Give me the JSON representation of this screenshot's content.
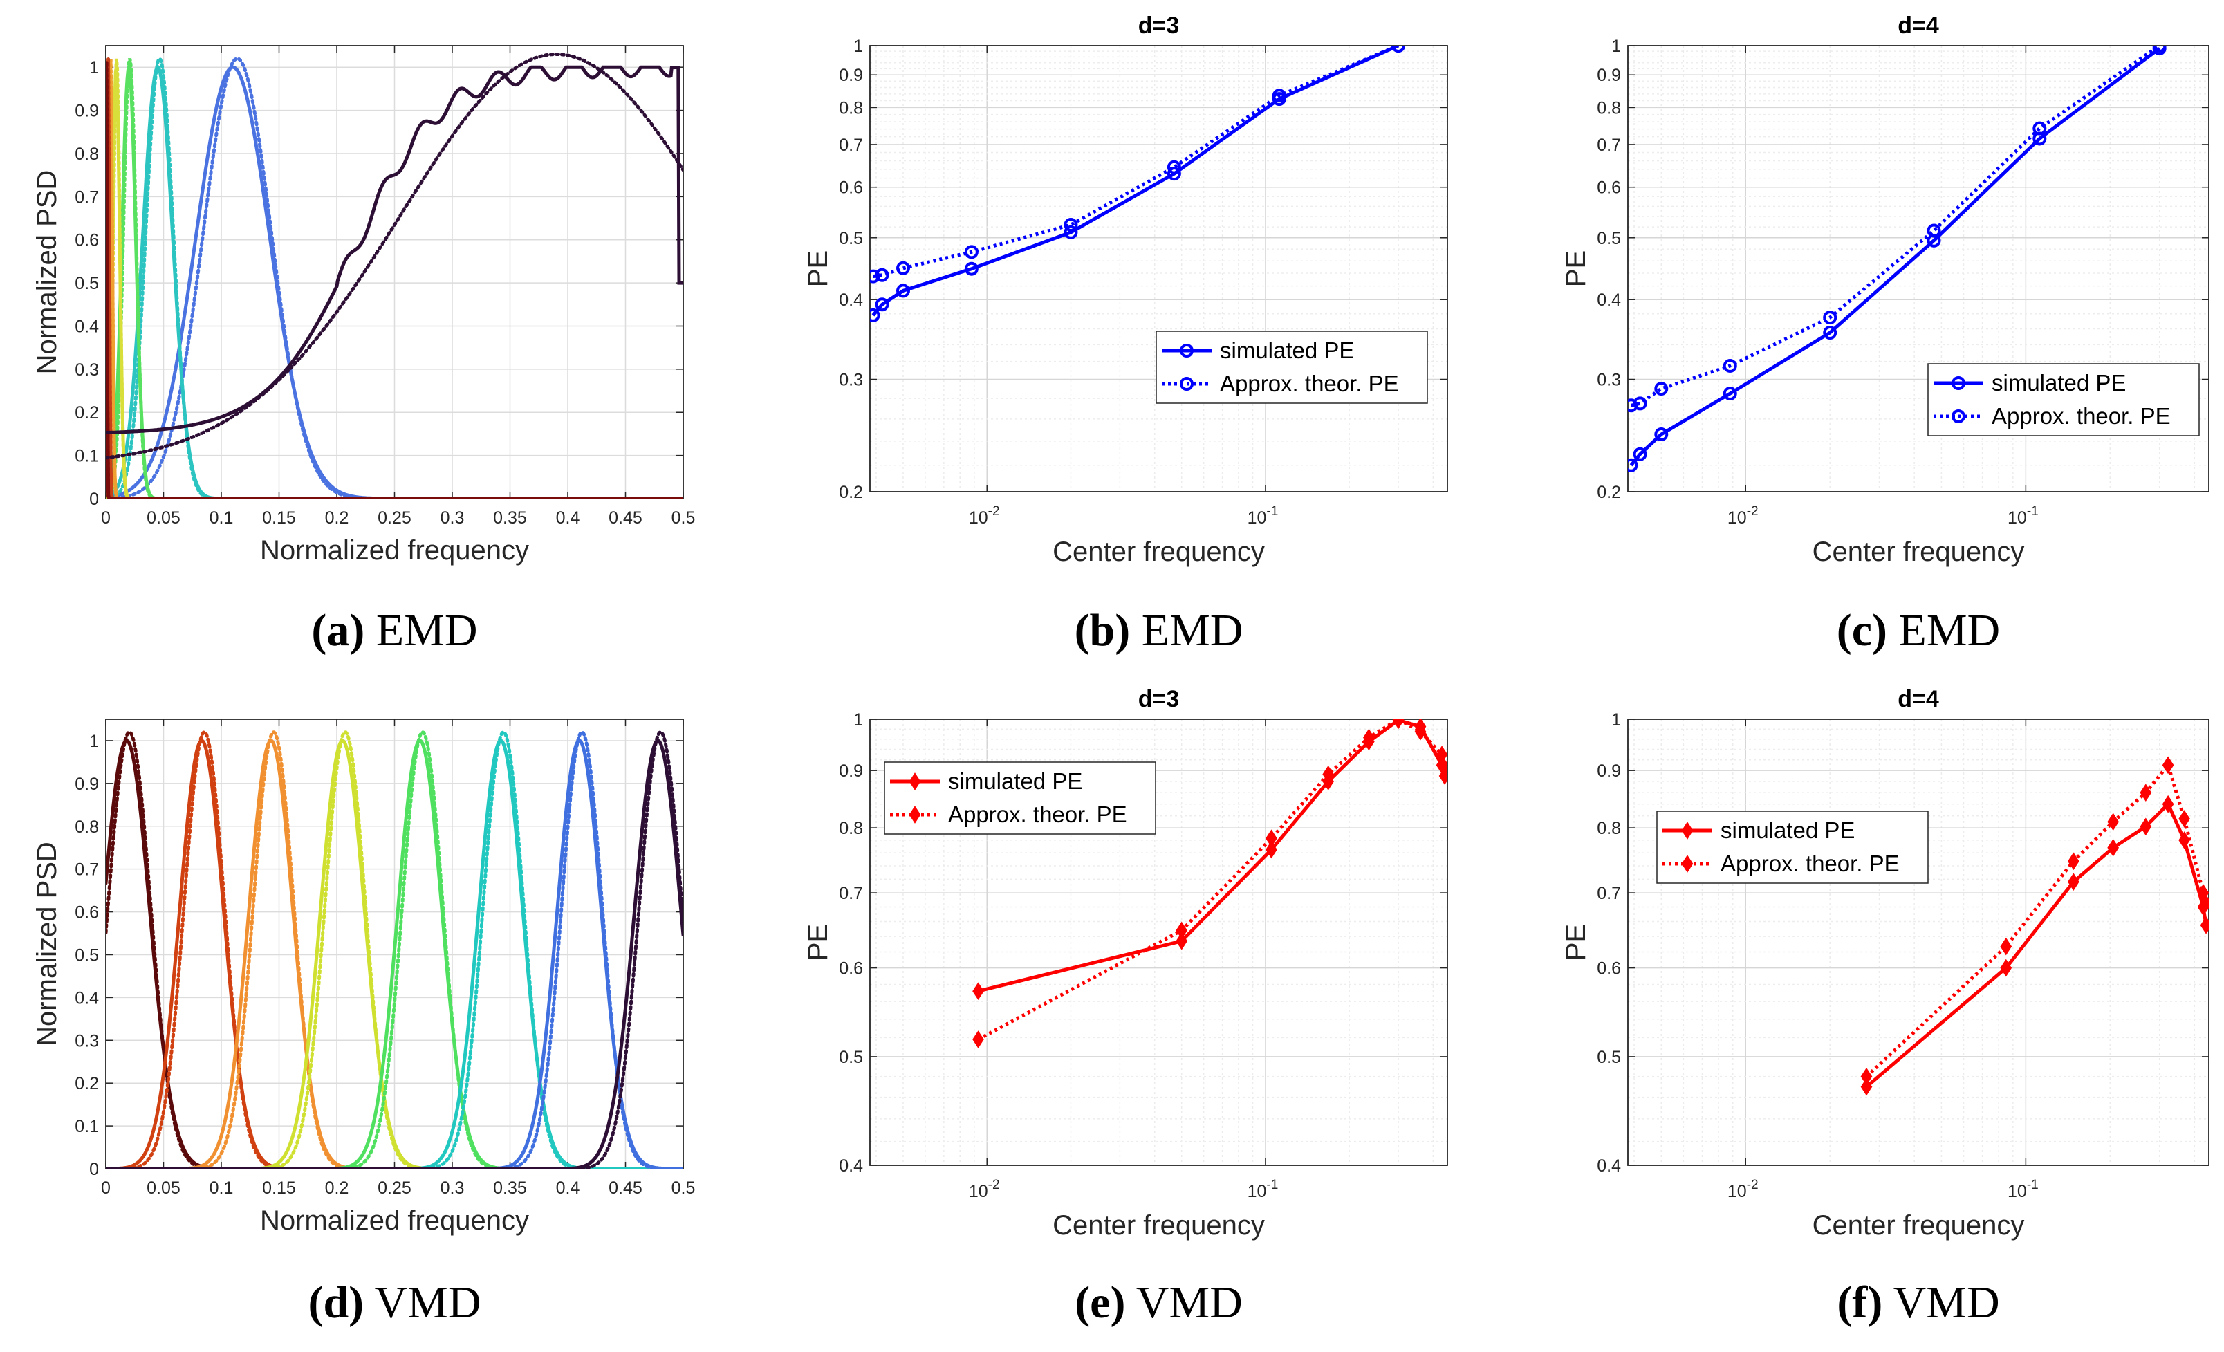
{
  "chart_data": [
    {
      "id": "a",
      "type": "line",
      "title": "",
      "caption_letter": "(a)",
      "caption_text": "EMD",
      "xlabel": "Normalized frequency",
      "ylabel": "Normalized PSD",
      "xlim": [
        0,
        0.5
      ],
      "ylim": [
        0,
        1.05
      ],
      "xticks": [
        0,
        0.05,
        0.1,
        0.15,
        0.2,
        0.25,
        0.3,
        0.35,
        0.4,
        0.45,
        0.5
      ],
      "xtick_labels": [
        "0",
        "0.05",
        "0.1",
        "0.15",
        "0.2",
        "0.25",
        "0.3",
        "0.35",
        "0.4",
        "0.45",
        "0.5"
      ],
      "yticks": [
        0,
        0.1,
        0.2,
        0.3,
        0.4,
        0.5,
        0.6,
        0.7,
        0.8,
        0.9,
        1
      ],
      "ytick_labels": [
        "0",
        "0.1",
        "0.2",
        "0.3",
        "0.4",
        "0.5",
        "0.6",
        "0.7",
        "0.8",
        "0.9",
        "1"
      ],
      "curves": [
        {
          "kind": "gauss",
          "center": 0.11,
          "width": 0.032,
          "peak": 1.0,
          "color": "#4a72e0"
        },
        {
          "kind": "gauss",
          "center": 0.045,
          "width": 0.013,
          "peak": 1.0,
          "color": "#2bc4c0"
        },
        {
          "kind": "gauss",
          "center": 0.02,
          "width": 0.006,
          "peak": 1.0,
          "color": "#58e060"
        },
        {
          "kind": "gauss",
          "center": 0.009,
          "width": 0.003,
          "peak": 1.0,
          "color": "#d8de3a"
        },
        {
          "kind": "gauss",
          "center": 0.004,
          "width": 0.0016,
          "peak": 1.0,
          "color": "#f0a030"
        },
        {
          "kind": "gauss",
          "center": 0.002,
          "width": 0.001,
          "peak": 1.0,
          "color": "#c8401a"
        },
        {
          "kind": "gauss",
          "center": 0.0006,
          "width": 0.0005,
          "peak": 1.0,
          "color": "#7a0c0c"
        },
        {
          "kind": "rising",
          "color": "#2d0f35"
        }
      ]
    },
    {
      "id": "b",
      "type": "line",
      "title": "d=3",
      "caption_letter": "(b)",
      "caption_text": "EMD",
      "xlabel": "Center  frequency",
      "ylabel": "PE",
      "xscale": "log",
      "yscale": "log",
      "xlim": [
        0.0038,
        0.45
      ],
      "ylim": [
        0.2,
        1
      ],
      "xticks": [
        0.01,
        0.1
      ],
      "xtick_labels": [
        "10",
        "10"
      ],
      "xtick_exponents": [
        "-2",
        "-1"
      ],
      "yticks": [
        0.2,
        0.3,
        0.4,
        0.5,
        0.6,
        0.7,
        0.8,
        0.9,
        1
      ],
      "ytick_labels": [
        "0.2",
        "0.3",
        "0.4",
        "0.5",
        "0.6",
        "0.7",
        "0.8",
        "0.9",
        "1"
      ],
      "color": "#0000ff",
      "marker": "circle",
      "legend": {
        "position": "middle-right",
        "entries": [
          "simulated PE",
          "Approx. theor. PE"
        ]
      },
      "series": [
        {
          "name": "simulated PE",
          "style": "solid",
          "x": [
            0.0039,
            0.0042,
            0.005,
            0.0088,
            0.02,
            0.047,
            0.112,
            0.3
          ],
          "values": [
            0.378,
            0.393,
            0.413,
            0.447,
            0.51,
            0.63,
            0.825,
            1.0
          ]
        },
        {
          "name": "Approx. theor. PE",
          "style": "dotted",
          "x": [
            0.0039,
            0.0042,
            0.005,
            0.0088,
            0.02,
            0.047,
            0.112,
            0.3
          ],
          "values": [
            0.435,
            0.437,
            0.448,
            0.475,
            0.524,
            0.645,
            0.835,
            1.0
          ]
        }
      ]
    },
    {
      "id": "c",
      "type": "line",
      "title": "d=4",
      "caption_letter": "(c)",
      "caption_text": "EMD",
      "xlabel": "Center  frequency",
      "ylabel": "PE",
      "xscale": "log",
      "yscale": "log",
      "xlim": [
        0.0038,
        0.45
      ],
      "ylim": [
        0.2,
        1
      ],
      "xticks": [
        0.01,
        0.1
      ],
      "xtick_labels": [
        "10",
        "10"
      ],
      "xtick_exponents": [
        "-2",
        "-1"
      ],
      "yticks": [
        0.2,
        0.3,
        0.4,
        0.5,
        0.6,
        0.7,
        0.8,
        0.9,
        1
      ],
      "ytick_labels": [
        "0.2",
        "0.3",
        "0.4",
        "0.5",
        "0.6",
        "0.7",
        "0.8",
        "0.9",
        "1"
      ],
      "color": "#0000ff",
      "marker": "circle",
      "legend": {
        "position": "lower-right",
        "entries": [
          "simulated PE",
          "Approx. theor. PE"
        ]
      },
      "series": [
        {
          "name": "simulated PE",
          "style": "solid",
          "x": [
            0.0039,
            0.0042,
            0.005,
            0.0088,
            0.02,
            0.047,
            0.112,
            0.3
          ],
          "values": [
            0.22,
            0.229,
            0.246,
            0.285,
            0.355,
            0.495,
            0.715,
            0.99
          ]
        },
        {
          "name": "Approx. theor. PE",
          "style": "dotted",
          "x": [
            0.0039,
            0.0042,
            0.005,
            0.0088,
            0.02,
            0.047,
            0.112,
            0.3
          ],
          "values": [
            0.273,
            0.275,
            0.29,
            0.315,
            0.375,
            0.513,
            0.742,
            1.0
          ]
        }
      ]
    },
    {
      "id": "d",
      "type": "line",
      "title": "",
      "caption_letter": "(d)",
      "caption_text": "VMD",
      "xlabel": "Normalized frequency",
      "ylabel": "Normalized PSD",
      "xlim": [
        0,
        0.5
      ],
      "ylim": [
        0,
        1.05
      ],
      "xticks": [
        0,
        0.05,
        0.1,
        0.15,
        0.2,
        0.25,
        0.3,
        0.35,
        0.4,
        0.45,
        0.5
      ],
      "xtick_labels": [
        "0",
        "0.05",
        "0.1",
        "0.15",
        "0.2",
        "0.25",
        "0.3",
        "0.35",
        "0.4",
        "0.45",
        "0.5"
      ],
      "yticks": [
        0,
        0.1,
        0.2,
        0.3,
        0.4,
        0.5,
        0.6,
        0.7,
        0.8,
        0.9,
        1
      ],
      "ytick_labels": [
        "0",
        "0.1",
        "0.2",
        "0.3",
        "0.4",
        "0.5",
        "0.6",
        "0.7",
        "0.8",
        "0.9",
        "1"
      ],
      "curves": [
        {
          "kind": "gauss",
          "center": 0.018,
          "width": 0.02,
          "peak": 1.0,
          "color": "#5a0a0a"
        },
        {
          "kind": "gauss",
          "center": 0.083,
          "width": 0.019,
          "peak": 1.0,
          "color": "#d04010"
        },
        {
          "kind": "gauss",
          "center": 0.143,
          "width": 0.019,
          "peak": 1.0,
          "color": "#f09030"
        },
        {
          "kind": "gauss",
          "center": 0.205,
          "width": 0.019,
          "peak": 1.0,
          "color": "#d0e030"
        },
        {
          "kind": "gauss",
          "center": 0.272,
          "width": 0.019,
          "peak": 1.0,
          "color": "#50e060"
        },
        {
          "kind": "gauss",
          "center": 0.342,
          "width": 0.019,
          "peak": 1.0,
          "color": "#20c8c0"
        },
        {
          "kind": "gauss",
          "center": 0.41,
          "width": 0.019,
          "peak": 1.0,
          "color": "#4070e0"
        },
        {
          "kind": "gauss",
          "center": 0.478,
          "width": 0.02,
          "peak": 1.0,
          "color": "#2d0f35"
        }
      ]
    },
    {
      "id": "e",
      "type": "line",
      "title": "d=3",
      "caption_letter": "(e)",
      "caption_text": "VMD",
      "xlabel": "Center  frequency",
      "ylabel": "PE",
      "xscale": "log",
      "yscale": "log",
      "xlim": [
        0.0038,
        0.45
      ],
      "ylim": [
        0.4,
        1
      ],
      "xticks": [
        0.01,
        0.1
      ],
      "xtick_labels": [
        "10",
        "10"
      ],
      "xtick_exponents": [
        "-2",
        "-1"
      ],
      "yticks": [
        0.4,
        0.5,
        0.6,
        0.7,
        0.8,
        0.9,
        1
      ],
      "ytick_labels": [
        "0.4",
        "0.5",
        "0.6",
        "0.7",
        "0.8",
        "0.9",
        "1"
      ],
      "color": "#ff0000",
      "marker": "diamond",
      "legend": {
        "position": "top-left",
        "entries": [
          "simulated PE",
          "Approx. theor. PE"
        ]
      },
      "series": [
        {
          "name": "simulated PE",
          "style": "solid",
          "x": [
            0.0093,
            0.05,
            0.105,
            0.168,
            0.235,
            0.3,
            0.36,
            0.43,
            0.44
          ],
          "values": [
            0.572,
            0.634,
            0.765,
            0.88,
            0.955,
            0.998,
            0.985,
            0.91,
            0.905
          ]
        },
        {
          "name": "Approx. theor. PE",
          "style": "dotted",
          "x": [
            0.0093,
            0.05,
            0.105,
            0.168,
            0.235,
            0.3,
            0.36,
            0.43,
            0.44
          ],
          "values": [
            0.518,
            0.648,
            0.783,
            0.893,
            0.963,
            1.0,
            0.975,
            0.93,
            0.89
          ]
        }
      ]
    },
    {
      "id": "f",
      "type": "line",
      "title": "d=4",
      "caption_letter": "(f)",
      "caption_text": "VMD",
      "xlabel": "Center  frequency",
      "ylabel": "PE",
      "xscale": "log",
      "yscale": "log",
      "xlim": [
        0.0038,
        0.45
      ],
      "ylim": [
        0.4,
        1
      ],
      "xticks": [
        0.01,
        0.1
      ],
      "xtick_labels": [
        "10",
        "10"
      ],
      "xtick_exponents": [
        "-2",
        "-1"
      ],
      "yticks": [
        0.4,
        0.5,
        0.6,
        0.7,
        0.8,
        0.9,
        1
      ],
      "ytick_labels": [
        "0.4",
        "0.5",
        "0.6",
        "0.7",
        "0.8",
        "0.9",
        "1"
      ],
      "color": "#ff0000",
      "marker": "diamond",
      "legend": {
        "position": "top-left",
        "entries": [
          "simulated PE",
          "Approx. theor. PE"
        ]
      },
      "series": [
        {
          "name": "simulated PE",
          "style": "solid",
          "x": [
            0.027,
            0.085,
            0.148,
            0.205,
            0.268,
            0.322,
            0.368,
            0.43,
            0.44
          ],
          "values": [
            0.47,
            0.6,
            0.716,
            0.768,
            0.802,
            0.84,
            0.78,
            0.68,
            0.655
          ]
        },
        {
          "name": "Approx. theor. PE",
          "style": "dotted",
          "x": [
            0.027,
            0.085,
            0.148,
            0.205,
            0.268,
            0.322,
            0.368,
            0.43,
            0.44
          ],
          "values": [
            0.48,
            0.627,
            0.747,
            0.81,
            0.86,
            0.91,
            0.815,
            0.7,
            0.685
          ]
        }
      ]
    }
  ]
}
